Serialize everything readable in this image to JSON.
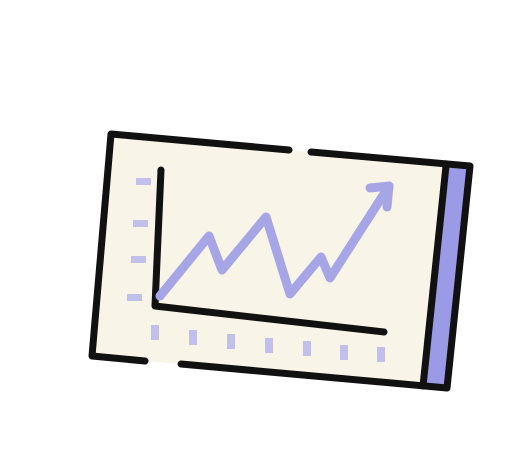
{
  "illustration": {
    "icon": "growth-chart-icon",
    "colors": {
      "outline": "#111111",
      "screen_fill": "#f8f4e8",
      "trend_line": "#a6a6e6",
      "side_panel": "#9a9ae6",
      "tick_marks": "#c0c0ea"
    }
  }
}
